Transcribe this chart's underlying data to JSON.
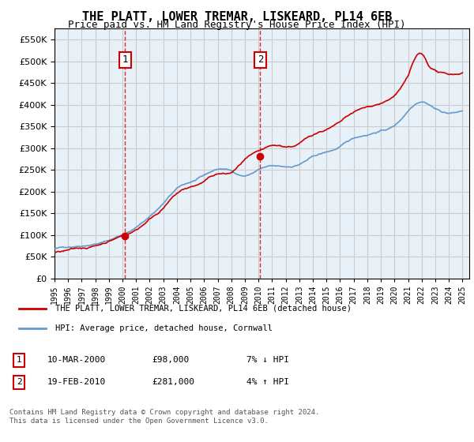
{
  "title": "THE PLATT, LOWER TREMAR, LISKEARD, PL14 6EB",
  "subtitle": "Price paid vs. HM Land Registry's House Price Index (HPI)",
  "ylim": [
    0,
    575000
  ],
  "yticks": [
    0,
    50000,
    100000,
    150000,
    200000,
    250000,
    300000,
    350000,
    400000,
    450000,
    500000,
    550000
  ],
  "xlim_start": 1995.0,
  "xlim_end": 2025.5,
  "background_color": "#ffffff",
  "grid_color": "#cccccc",
  "plot_bg_color": "#e8f0f8",
  "sale1_year": 2000.19,
  "sale1_price": 98000,
  "sale2_year": 2010.13,
  "sale2_price": 281000,
  "legend_line1": "THE PLATT, LOWER TREMAR, LISKEARD, PL14 6EB (detached house)",
  "legend_line2": "HPI: Average price, detached house, Cornwall",
  "table_entries": [
    {
      "num": 1,
      "date": "10-MAR-2000",
      "price": "£98,000",
      "hpi": "7% ↓ HPI"
    },
    {
      "num": 2,
      "date": "19-FEB-2010",
      "price": "£281,000",
      "hpi": "4% ↑ HPI"
    }
  ],
  "footer": "Contains HM Land Registry data © Crown copyright and database right 2024.\nThis data is licensed under the Open Government Licence v3.0.",
  "red_line_color": "#cc0000",
  "blue_line_color": "#6699cc",
  "dashed_line_color": "#cc0000"
}
